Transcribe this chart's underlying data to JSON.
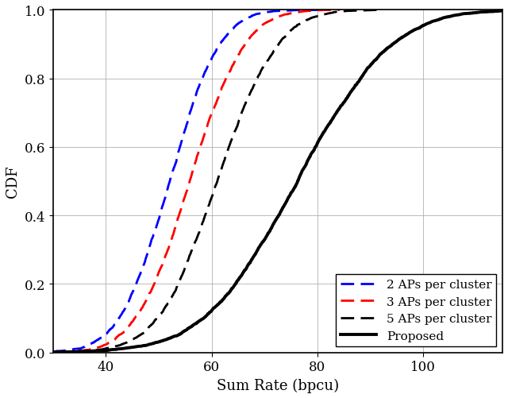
{
  "xlabel": "Sum Rate (bpcu)",
  "ylabel": "CDF",
  "xlim": [
    30,
    115
  ],
  "ylim": [
    0,
    1.0
  ],
  "xticks": [
    40,
    60,
    80,
    100
  ],
  "yticks": [
    0,
    0.2,
    0.4,
    0.6,
    0.8,
    1.0
  ],
  "curves": [
    {
      "label": "2 APs per cluster",
      "color": "blue",
      "linestyle": "--",
      "linewidth": 2.0,
      "mean": 52,
      "std": 7.5
    },
    {
      "label": "3 APs per cluster",
      "color": "red",
      "linestyle": "--",
      "linewidth": 2.0,
      "mean": 56,
      "std": 8.0
    },
    {
      "label": "5 APs per cluster",
      "color": "black",
      "linestyle": "--",
      "linewidth": 2.0,
      "mean": 61,
      "std": 9.0
    },
    {
      "label": "Proposed",
      "color": "black",
      "linestyle": "-",
      "linewidth": 2.8,
      "mean": 76,
      "std": 14
    }
  ],
  "legend_loc": "lower right",
  "grid": true,
  "background_color": "#ffffff"
}
